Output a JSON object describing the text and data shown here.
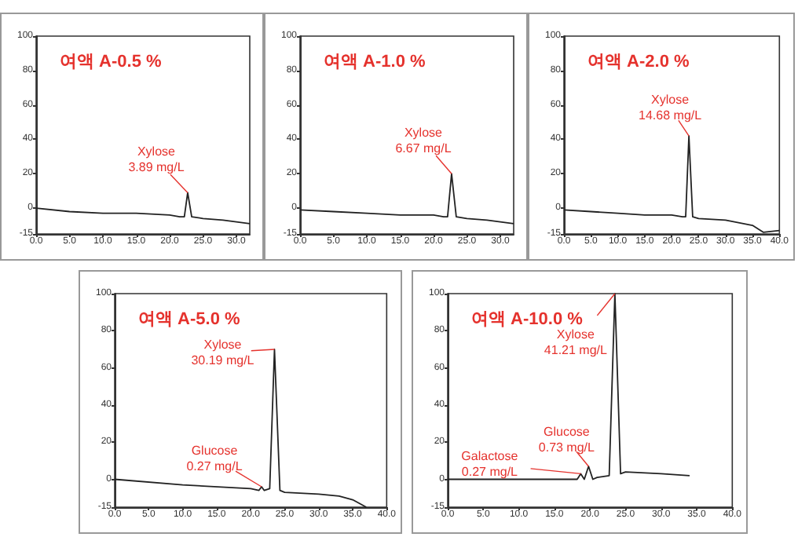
{
  "chart_data": [
    {
      "type": "line",
      "title": "여액 A-0.5 %",
      "marker": "none",
      "grid": false,
      "xlim": [
        0,
        32
      ],
      "ylim": [
        -15,
        100
      ],
      "xticks": [
        {
          "value": 0,
          "label": "0.0"
        },
        {
          "value": 5,
          "label": "5.0"
        },
        {
          "value": 10,
          "label": "10.0"
        },
        {
          "value": 15,
          "label": "15.0"
        },
        {
          "value": 20,
          "label": "20.0"
        },
        {
          "value": 25,
          "label": "25.0"
        },
        {
          "value": 30,
          "label": "30.0"
        }
      ],
      "yticks": [
        -15,
        0,
        20,
        40,
        60,
        80,
        100
      ],
      "x": [
        0,
        5,
        10,
        15,
        20,
        21.5,
        22.2,
        22.7,
        23.3,
        25,
        28,
        32
      ],
      "series": [
        {
          "color": "#222222",
          "values": [
            0,
            -2,
            -3,
            -3,
            -4,
            -5,
            -5,
            9,
            -5,
            -6,
            -7,
            -9
          ]
        }
      ],
      "annotations": [
        {
          "text": "Xylose\n3.89 mg/L",
          "x": 22.7,
          "y": 9
        }
      ]
    },
    {
      "type": "line",
      "title": "여액 A-1.0 %",
      "marker": "none",
      "grid": false,
      "xlim": [
        0,
        32
      ],
      "ylim": [
        -15,
        100
      ],
      "xticks": [
        {
          "value": 0,
          "label": "0.0"
        },
        {
          "value": 5,
          "label": "5.0"
        },
        {
          "value": 10,
          "label": "10.0"
        },
        {
          "value": 15,
          "label": "15.0"
        },
        {
          "value": 20,
          "label": "20.0"
        },
        {
          "value": 25,
          "label": "25.0"
        },
        {
          "value": 30,
          "label": "30.0"
        }
      ],
      "yticks": [
        -15,
        0,
        20,
        40,
        60,
        80,
        100
      ],
      "x": [
        0,
        5,
        10,
        15,
        20,
        21.5,
        22.1,
        22.7,
        23.4,
        25,
        28,
        32
      ],
      "series": [
        {
          "color": "#222222",
          "values": [
            -1,
            -2,
            -3,
            -4,
            -4,
            -5,
            -5,
            20,
            -5,
            -6,
            -7,
            -9
          ]
        }
      ],
      "annotations": [
        {
          "text": "Xylose\n6.67 mg/L",
          "x": 22.7,
          "y": 20
        }
      ]
    },
    {
      "type": "line",
      "title": "여액 A-2.0 %",
      "marker": "none",
      "grid": false,
      "xlim": [
        0,
        40
      ],
      "ylim": [
        -15,
        100
      ],
      "xticks": [
        {
          "value": 0,
          "label": "0.0"
        },
        {
          "value": 5,
          "label": "5.0"
        },
        {
          "value": 10,
          "label": "10.0"
        },
        {
          "value": 15,
          "label": "15.0"
        },
        {
          "value": 20,
          "label": "20.0"
        },
        {
          "value": 25,
          "label": "25.0"
        },
        {
          "value": 30,
          "label": "30.0"
        },
        {
          "value": 35,
          "label": "35.0"
        },
        {
          "value": 40,
          "label": "40.0"
        }
      ],
      "yticks": [
        -15,
        0,
        20,
        40,
        60,
        80,
        100
      ],
      "x": [
        0,
        5,
        10,
        15,
        20,
        22,
        22.6,
        23.2,
        23.9,
        25,
        30,
        35,
        37,
        40
      ],
      "series": [
        {
          "color": "#222222",
          "values": [
            -1,
            -2,
            -3,
            -4,
            -4,
            -5,
            -5,
            42,
            -5,
            -6,
            -7,
            -10,
            -14,
            -13
          ]
        }
      ],
      "annotations": [
        {
          "text": "Xylose\n14.68 mg/L",
          "x": 23.2,
          "y": 42
        }
      ]
    },
    {
      "type": "line",
      "title": "여액 A-5.0 %",
      "marker": "none",
      "grid": false,
      "xlim": [
        0,
        40
      ],
      "ylim": [
        -15,
        100
      ],
      "xticks": [
        {
          "value": 0,
          "label": "0.0"
        },
        {
          "value": 5,
          "label": "5.0"
        },
        {
          "value": 10,
          "label": "10.0"
        },
        {
          "value": 15,
          "label": "15.0"
        },
        {
          "value": 20,
          "label": "20.0"
        },
        {
          "value": 25,
          "label": "25.0"
        },
        {
          "value": 30,
          "label": "30.0"
        },
        {
          "value": 35,
          "label": "35.0"
        },
        {
          "value": 40,
          "label": "40.0"
        }
      ],
      "yticks": [
        -15,
        0,
        20,
        40,
        60,
        80,
        100
      ],
      "x": [
        0,
        10,
        20,
        21.2,
        21.6,
        22,
        22.8,
        23.5,
        24.3,
        25,
        30,
        33,
        35,
        37
      ],
      "series": [
        {
          "color": "#222222",
          "values": [
            0,
            -3,
            -5,
            -6,
            -4,
            -6,
            -5,
            70,
            -6,
            -7,
            -8,
            -9,
            -11,
            -15
          ]
        }
      ],
      "annotations": [
        {
          "text": "Xylose\n30.19 mg/L",
          "x": 23.5,
          "y": 70
        },
        {
          "text": "Glucose\n0.27 mg/L",
          "x": 21.6,
          "y": -4
        }
      ]
    },
    {
      "type": "line",
      "title": "여액 A-10.0 %",
      "marker": "none",
      "grid": false,
      "xlim": [
        0,
        40
      ],
      "ylim": [
        -15,
        100
      ],
      "xticks": [
        {
          "value": 0,
          "label": "0.0"
        },
        {
          "value": 5,
          "label": "5.0"
        },
        {
          "value": 10,
          "label": "10.0"
        },
        {
          "value": 15,
          "label": "15.0"
        },
        {
          "value": 20,
          "label": "20.0"
        },
        {
          "value": 25,
          "label": "25.0"
        },
        {
          "value": 30,
          "label": "30.0"
        },
        {
          "value": 35,
          "label": "35.0"
        },
        {
          "value": 40,
          "label": "40.0"
        }
      ],
      "yticks": [
        -15,
        0,
        20,
        40,
        60,
        80,
        100
      ],
      "x": [
        0,
        10,
        15,
        18.2,
        18.7,
        19.2,
        19.8,
        20.4,
        21,
        22.7,
        23.5,
        24.3,
        25,
        30,
        34
      ],
      "series": [
        {
          "color": "#222222",
          "values": [
            0,
            0,
            0,
            0,
            3,
            0,
            7,
            0,
            1,
            2,
            100,
            3,
            4,
            3,
            2
          ]
        }
      ],
      "annotations": [
        {
          "text": "Xylose\n41.21 mg/L",
          "x": 23.5,
          "y": 100
        },
        {
          "text": "Glucose\n0.73 mg/L",
          "x": 19.8,
          "y": 7
        },
        {
          "text": "Galactose\n0.27 mg/L",
          "x": 18.7,
          "y": 3
        }
      ]
    }
  ]
}
